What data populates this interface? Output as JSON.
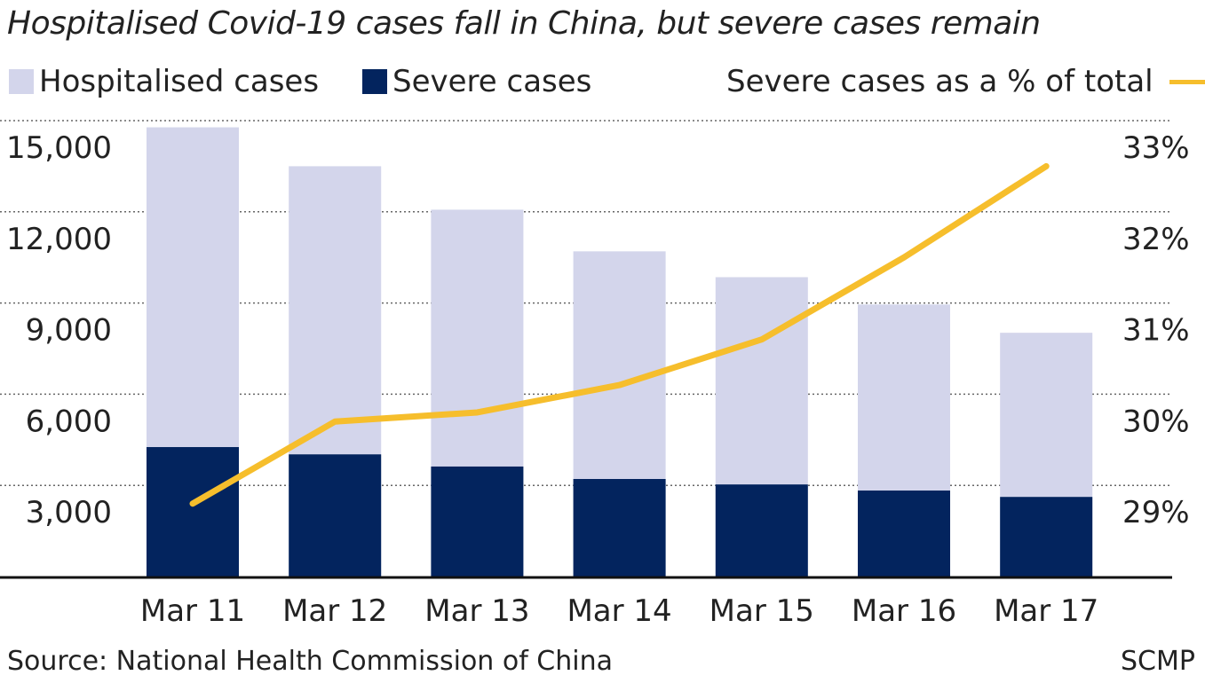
{
  "chart_data": {
    "type": "bar",
    "title": "Hospitalised Covid-19 cases fall in China, but severe cases remain",
    "categories": [
      "Mar 11",
      "Mar 12",
      "Mar 13",
      "Mar 14",
      "Mar 15",
      "Mar 16",
      "Mar 17"
    ],
    "series": [
      {
        "name": "Hospitalised cases",
        "type": "bar",
        "axis": "left",
        "color": "#d3d5eb",
        "values": [
          14780,
          13500,
          12070,
          10700,
          9850,
          8950,
          8020
        ]
      },
      {
        "name": "Severe cases",
        "type": "bar",
        "axis": "left",
        "color": "#03245e",
        "values": [
          4260,
          4020,
          3620,
          3210,
          3030,
          2830,
          2620
        ]
      },
      {
        "name": "Severe cases as a % of total",
        "type": "line",
        "axis": "right",
        "color": "#f6be2c",
        "values": [
          28.8,
          29.7,
          29.8,
          30.1,
          30.6,
          31.5,
          32.5
        ]
      }
    ],
    "ylim_left": [
      0,
      15000
    ],
    "yticks_left": [
      "3,000",
      "6,000",
      "9,000",
      "12,000",
      "15,000"
    ],
    "ylim_right": [
      28,
      33
    ],
    "yticks_right": [
      "29%",
      "30%",
      "31%",
      "32%",
      "33%"
    ],
    "grid": "horizontal dotted",
    "legend": "top"
  },
  "source": "Source: National Health Commission of China",
  "credit": "SCMP"
}
